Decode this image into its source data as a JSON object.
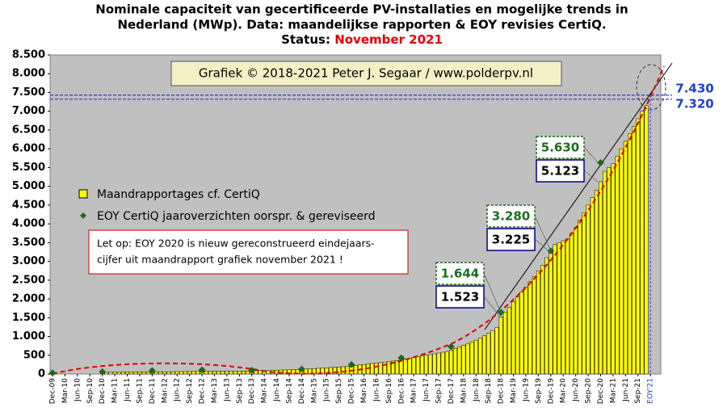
{
  "chart_data": {
    "type": "bar",
    "title_lines": [
      "Nominale capaciteit van gecertificeerde PV-installaties en mogelijke trends in",
      "Nederland (MWp). Data: maandelijkse rapporten & EOY revisies CertiQ."
    ],
    "status_label": "Status:",
    "status_value": "November 2021",
    "credit": "Grafiek © 2018-2021 Peter J. Segaar / www.polderpv.nl",
    "note_lines": [
      "Let op: EOY 2020 is nieuw gereconstrueerd eindejaars-",
      "cijfer uit maandrapport grafiek november 2021 !"
    ],
    "categories": [
      "Dec-09",
      null,
      null,
      "Mar-10",
      null,
      null,
      "Jun-10",
      null,
      null,
      "Sep-10",
      null,
      null,
      "Dec-10",
      null,
      null,
      "Mar-11",
      null,
      null,
      "Jun-11",
      null,
      null,
      "Sep-11",
      null,
      null,
      "Dec-11",
      null,
      null,
      "Mar-12",
      null,
      null,
      "Jun-12",
      null,
      null,
      "Sep-12",
      null,
      null,
      "Dec-12",
      null,
      null,
      "Mar-13",
      null,
      null,
      "Jun-13",
      null,
      null,
      "Sep-13",
      null,
      null,
      "Dec-13",
      null,
      null,
      "Mar-14",
      null,
      null,
      "Jun-14",
      null,
      null,
      "Sep-14",
      null,
      null,
      "Dec-14",
      null,
      null,
      "Mar-15",
      null,
      null,
      "Jun-15",
      null,
      null,
      "Sep-15",
      null,
      null,
      "Dec-15",
      null,
      null,
      "Mar-16",
      null,
      null,
      "Jun-16",
      null,
      null,
      "Sep-16",
      null,
      null,
      "Dec-16",
      null,
      null,
      "Mar-17",
      null,
      null,
      "Jun-17",
      null,
      null,
      "Sep-17",
      null,
      null,
      "Dec-17",
      null,
      null,
      "Mar-18",
      null,
      null,
      "Jun-18",
      null,
      null,
      "Sep-18",
      null,
      null,
      "Dec-18",
      null,
      null,
      "Mar-19",
      null,
      null,
      "Jun-19",
      null,
      null,
      "Sep-19",
      null,
      null,
      "Dec-19",
      null,
      null,
      "Mar-20",
      null,
      null,
      "Jun-20",
      null,
      null,
      "Sep-20",
      null,
      null,
      "Dec-20",
      null,
      null,
      "Mar-21",
      null,
      null,
      "Jun-21",
      null,
      null,
      "Sep-21",
      null,
      null,
      "EOY'21"
    ],
    "series": [
      {
        "name": "Maandrapportages cf. CertiQ",
        "color": "#ffff00",
        "values": [
          null,
          null,
          null,
          null,
          null,
          null,
          null,
          null,
          null,
          null,
          null,
          null,
          45,
          46,
          47,
          48,
          49,
          50,
          52,
          53,
          54,
          55,
          56,
          57,
          58,
          59,
          60,
          61,
          62,
          63,
          64,
          65,
          66,
          67,
          68,
          69,
          70,
          71,
          72,
          73,
          74,
          75,
          76,
          77,
          78,
          79,
          80,
          81,
          85,
          88,
          91,
          94,
          97,
          100,
          103,
          106,
          109,
          112,
          115,
          118,
          125,
          132,
          139,
          146,
          153,
          160,
          167,
          174,
          181,
          188,
          195,
          202,
          215,
          228,
          241,
          254,
          267,
          280,
          293,
          306,
          319,
          332,
          345,
          358,
          380,
          400,
          420,
          440,
          460,
          480,
          500,
          520,
          540,
          560,
          580,
          600,
          640,
          680,
          720,
          760,
          800,
          850,
          900,
          960,
          1020,
          1090,
          1160,
          1240,
          1523,
          1650,
          1780,
          1920,
          2050,
          2180,
          2320,
          2460,
          2600,
          2750,
          2900,
          3100,
          3225,
          3450,
          3500,
          3550,
          3600,
          3750,
          3900,
          4100,
          4300,
          4500,
          4700,
          4900,
          5123,
          5400,
          5500,
          5600,
          5800,
          6000,
          6200,
          6400,
          6600,
          6800,
          7000,
          7150,
          null
        ]
      },
      {
        "name": "EOY CertiQ jaaroverzichten oorspr. & gereviseerd",
        "color": "#1a6e1a",
        "values": [
          30,
          null,
          null,
          null,
          null,
          null,
          null,
          null,
          null,
          null,
          null,
          null,
          60,
          null,
          null,
          null,
          null,
          null,
          null,
          null,
          null,
          null,
          null,
          null,
          90,
          null,
          null,
          null,
          null,
          null,
          null,
          null,
          null,
          null,
          null,
          null,
          110,
          null,
          null,
          null,
          null,
          null,
          null,
          null,
          null,
          null,
          null,
          null,
          100,
          null,
          null,
          null,
          null,
          null,
          null,
          null,
          null,
          null,
          null,
          null,
          130,
          null,
          null,
          null,
          null,
          null,
          null,
          null,
          null,
          null,
          null,
          null,
          250,
          null,
          null,
          null,
          null,
          null,
          null,
          null,
          null,
          null,
          null,
          null,
          430,
          null,
          null,
          null,
          null,
          null,
          null,
          null,
          null,
          null,
          null,
          null,
          730,
          null,
          null,
          null,
          null,
          null,
          null,
          null,
          null,
          null,
          null,
          null,
          1644,
          null,
          null,
          null,
          null,
          null,
          null,
          null,
          null,
          null,
          null,
          null,
          3280,
          null,
          null,
          null,
          null,
          null,
          null,
          null,
          null,
          null,
          null,
          null,
          5630,
          null,
          null,
          null,
          null,
          null,
          null,
          null,
          null,
          null,
          null,
          null,
          null
        ]
      }
    ],
    "annotations": [
      {
        "value": 1644,
        "label": "1.644",
        "color": "#1a6e1a"
      },
      {
        "value": 1523,
        "label": "1.523",
        "color": "#000080"
      },
      {
        "value": 3280,
        "label": "3.280",
        "color": "#1a6e1a"
      },
      {
        "value": 3225,
        "label": "3.225",
        "color": "#000080"
      },
      {
        "value": 5630,
        "label": "5.630",
        "color": "#1a6e1a"
      },
      {
        "value": 5123,
        "label": "5.123",
        "color": "#000080"
      },
      {
        "value": 7430,
        "label": "7.430",
        "color": "#1f3fd0"
      },
      {
        "value": 7320,
        "label": "7.320",
        "color": "#1f3fd0"
      }
    ],
    "ylim": [
      0,
      8500
    ],
    "yticks": [
      0,
      500,
      {
        "value": 1000,
        "label": "1.000"
      },
      {
        "value": 1500,
        "label": "1.500"
      },
      {
        "value": 2000,
        "label": "2.000"
      },
      {
        "value": 2500,
        "label": "2.500"
      },
      {
        "value": 3000,
        "label": "3.000"
      },
      {
        "value": 3500,
        "label": "3.500"
      },
      {
        "value": 4000,
        "label": "4.000"
      },
      {
        "value": 4500,
        "label": "4.500"
      },
      {
        "value": 5000,
        "label": "5.000"
      },
      {
        "value": 5500,
        "label": "5.500"
      },
      {
        "value": 6000,
        "label": "6.000"
      },
      {
        "value": 6500,
        "label": "6.500"
      },
      {
        "value": 7000,
        "label": "7.000"
      },
      {
        "value": 7500,
        "label": "7.500"
      },
      {
        "value": 8000,
        "label": "8.000"
      },
      {
        "value": 8500,
        "label": "8.500"
      }
    ],
    "background": "#c0c0c0"
  }
}
